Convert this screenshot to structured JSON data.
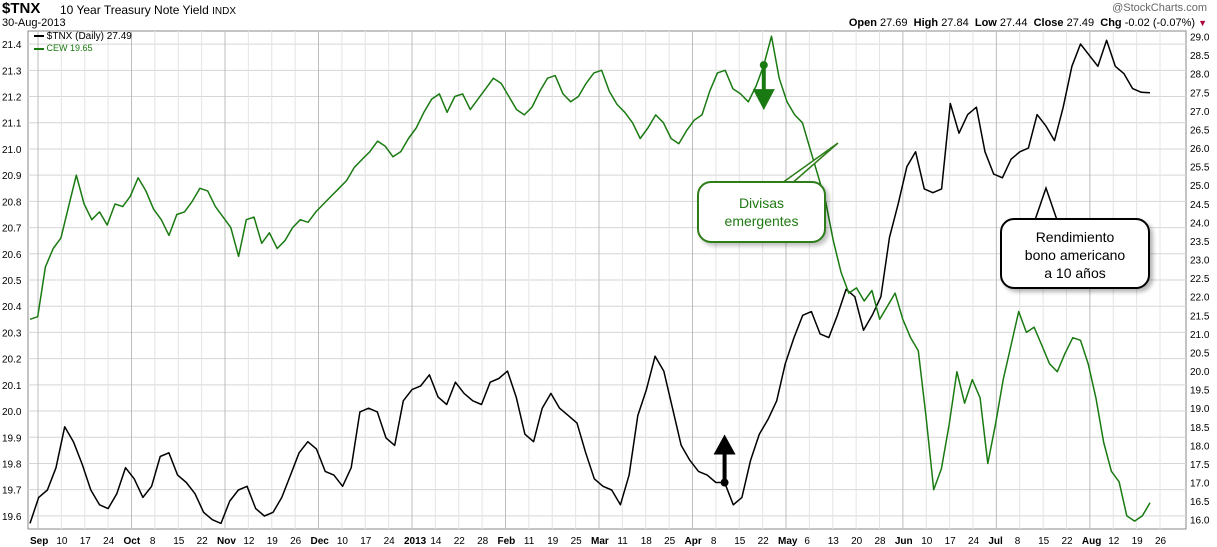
{
  "header": {
    "ticker": "$TNX",
    "subtitle": "10 Year Treasury Note Yield",
    "exchange": "INDX",
    "date": "30-Aug-2013",
    "watermark": "@StockCharts.com",
    "open_label": "Open",
    "open": "27.69",
    "high_label": "High",
    "high": "27.84",
    "low_label": "Low",
    "low": "27.44",
    "close_label": "Close",
    "close": "27.49",
    "chg_label": "Chg",
    "chg": "-0.02 (-0.07%)",
    "chg_arrow": "▼"
  },
  "legend": {
    "tnx": "$TNX (Daily) 27.49",
    "cew": "CEW 19.65"
  },
  "annotations": {
    "emergentes": [
      "Divisas",
      "emergentes"
    ],
    "bono": [
      "Rendimiento",
      "bono americano",
      "a 10 años"
    ]
  },
  "colors": {
    "tnx": "#000000",
    "cew": "#1a7a12",
    "grid": "#d6d6d6",
    "chg_arrow": "#cc0000"
  },
  "chart_data": {
    "type": "line",
    "x_tick_labels": [
      "Sep",
      "10",
      "17",
      "24",
      "Oct",
      "8",
      "15",
      "22",
      "Nov",
      "12",
      "19",
      "26",
      "Dec",
      "10",
      "17",
      "24",
      "2013",
      "14",
      "22",
      "28",
      "Feb",
      "11",
      "19",
      "25",
      "Mar",
      "11",
      "18",
      "25",
      "Apr",
      "8",
      "15",
      "22",
      "May",
      "6",
      "13",
      "20",
      "28",
      "Jun",
      "10",
      "17",
      "24",
      "Jul",
      "8",
      "15",
      "22",
      "Aug",
      "12",
      "19",
      "26"
    ],
    "x_bold_labels": [
      "Sep",
      "Oct",
      "Nov",
      "Dec",
      "2013",
      "Feb",
      "Mar",
      "Apr",
      "May",
      "Jun",
      "Jul",
      "Aug"
    ],
    "left_axis": {
      "ticks": [
        "19.6",
        "19.7",
        "19.8",
        "19.9",
        "20.0",
        "20.1",
        "20.2",
        "20.3",
        "20.4",
        "20.5",
        "20.6",
        "20.7",
        "20.8",
        "20.9",
        "21.0",
        "21.1",
        "21.2",
        "21.3",
        "21.4"
      ],
      "range": [
        19.55,
        21.45
      ]
    },
    "right_axis": {
      "ticks": [
        "16.0",
        "16.5",
        "17.0",
        "17.5",
        "18.0",
        "18.5",
        "19.0",
        "19.5",
        "20.0",
        "20.5",
        "21.0",
        "21.5",
        "22.0",
        "22.5",
        "23.0",
        "23.5",
        "24.0",
        "24.5",
        "25.0",
        "25.5",
        "26.0",
        "26.5",
        "27.0",
        "27.5",
        "28.0",
        "28.5",
        "29.0"
      ],
      "range": [
        15.75,
        29.15
      ]
    },
    "series": [
      {
        "name": "$TNX (Daily)",
        "axis": "right",
        "x_label": [
          "Sep",
          "Sep 10",
          "Sep 17",
          "Sep 24",
          "Oct",
          "Oct 8",
          "Oct 15",
          "Oct 22",
          "Nov",
          "Nov 12",
          "Nov 19",
          "Nov 26",
          "Dec",
          "Dec 10",
          "Dec 17",
          "Dec 24",
          "2013",
          "Jan 14",
          "Jan 22",
          "Jan 28",
          "Feb",
          "Feb 11",
          "Feb 19",
          "Feb 25",
          "Mar",
          "Mar 11",
          "Mar 18",
          "Mar 25",
          "Apr",
          "Apr 8",
          "Apr 15",
          "Apr 22",
          "May",
          "May 6",
          "May 13",
          "May 20",
          "May 28",
          "Jun",
          "Jun 10",
          "Jun 17",
          "Jun 24",
          "Jul",
          "Jul 8",
          "Jul 15",
          "Jul 22",
          "Aug",
          "Aug 12",
          "Aug 19",
          "Aug 26"
        ],
        "values": [
          15.9,
          16.6,
          16.8,
          17.4,
          18.5,
          18.1,
          17.5,
          16.8,
          16.4,
          16.3,
          16.7,
          17.4,
          17.1,
          16.6,
          16.9,
          17.7,
          17.8,
          17.2,
          17.0,
          16.7,
          16.2,
          16.0,
          15.9,
          16.5,
          16.8,
          16.9,
          16.3,
          16.1,
          16.2,
          16.6,
          17.2,
          17.8,
          18.1,
          17.9,
          17.3,
          17.2,
          16.9,
          17.4,
          18.9,
          19.0,
          18.9,
          18.2,
          18.0,
          19.2,
          19.5,
          19.6,
          19.9,
          19.3,
          19.1,
          19.7,
          19.4,
          19.2,
          19.1,
          19.7,
          19.8,
          20.0,
          19.3,
          18.3,
          18.1,
          19.0,
          19.4,
          19.0,
          18.8,
          18.6,
          17.8,
          17.1,
          16.9,
          16.8,
          16.4,
          17.2,
          18.8,
          19.5,
          20.4,
          20.0,
          19.0,
          18.0,
          17.6,
          17.3,
          17.2,
          17.0,
          17.0,
          16.4,
          16.6,
          17.6,
          18.3,
          18.7,
          19.2,
          20.2,
          20.9,
          21.5,
          21.6,
          21.0,
          20.9,
          21.5,
          22.2,
          22.0,
          21.1,
          21.5,
          22.0,
          23.6,
          24.5,
          25.5,
          25.9,
          24.9,
          24.8,
          24.9,
          27.2,
          26.4,
          26.9,
          27.1,
          25.9,
          25.3,
          25.2,
          25.7,
          25.9,
          26.0,
          26.9,
          26.6,
          26.2,
          27.1,
          28.2,
          28.8,
          28.5,
          28.2,
          28.9,
          28.2,
          28.0,
          27.6,
          27.5,
          27.49
        ],
        "color": "#000000"
      },
      {
        "name": "CEW",
        "axis": "left",
        "values": [
          20.35,
          20.36,
          20.55,
          20.62,
          20.66,
          20.78,
          20.9,
          20.79,
          20.73,
          20.76,
          20.71,
          20.79,
          20.78,
          20.82,
          20.89,
          20.84,
          20.77,
          20.73,
          20.67,
          20.75,
          20.76,
          20.8,
          20.85,
          20.84,
          20.78,
          20.74,
          20.7,
          20.59,
          20.73,
          20.74,
          20.64,
          20.68,
          20.62,
          20.65,
          20.7,
          20.73,
          20.72,
          20.76,
          20.79,
          20.82,
          20.85,
          20.88,
          20.93,
          20.96,
          20.99,
          21.03,
          21.01,
          20.97,
          20.99,
          21.04,
          21.08,
          21.14,
          21.19,
          21.21,
          21.14,
          21.2,
          21.21,
          21.15,
          21.19,
          21.23,
          21.27,
          21.25,
          21.2,
          21.15,
          21.13,
          21.16,
          21.22,
          21.27,
          21.28,
          21.21,
          21.18,
          21.2,
          21.25,
          21.29,
          21.3,
          21.22,
          21.17,
          21.14,
          21.1,
          21.04,
          21.08,
          21.13,
          21.1,
          21.04,
          21.02,
          21.07,
          21.11,
          21.13,
          21.22,
          21.29,
          21.3,
          21.23,
          21.21,
          21.18,
          21.24,
          21.32,
          21.43,
          21.27,
          21.18,
          21.13,
          21.1,
          21.0,
          20.9,
          20.8,
          20.65,
          20.53,
          20.45,
          20.47,
          20.42,
          20.46,
          20.35,
          20.4,
          20.45,
          20.35,
          20.28,
          20.23,
          19.98,
          19.7,
          19.78,
          19.95,
          20.15,
          20.03,
          20.12,
          20.05,
          19.8,
          19.95,
          20.12,
          20.25,
          20.38,
          20.3,
          20.32,
          20.25,
          20.18,
          20.15,
          20.22,
          20.28,
          20.27,
          20.18,
          20.05,
          19.88,
          19.77,
          19.73,
          19.6,
          19.58,
          19.6,
          19.65
        ],
        "color": "#1a7a12"
      }
    ],
    "markers": [
      {
        "series": "CEW",
        "type": "arrow-down",
        "at_index": 95
      },
      {
        "series": "$TNX (Daily)",
        "type": "arrow-up",
        "at_index": 80
      }
    ],
    "grid": true,
    "legend_position": "top-left"
  }
}
